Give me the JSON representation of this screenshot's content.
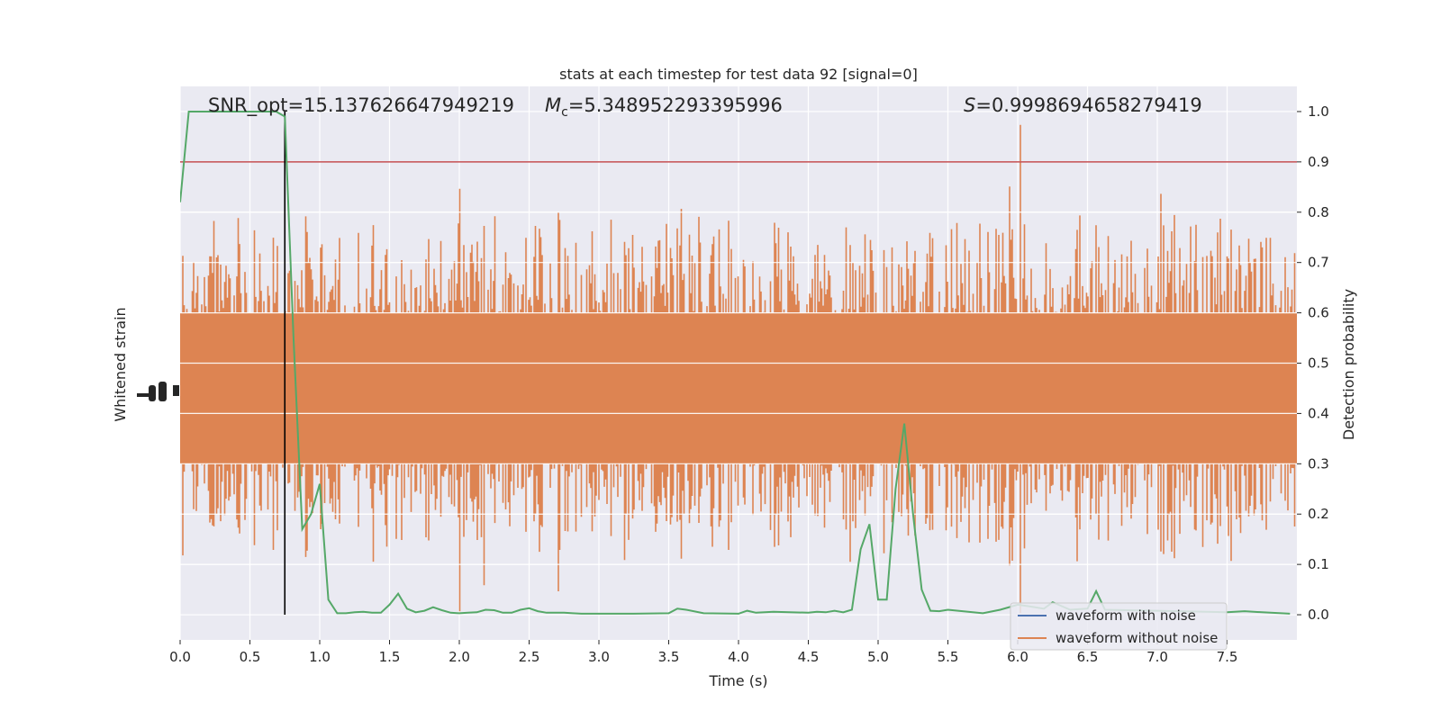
{
  "chart_data": {
    "type": "line",
    "title": "stats at each timestep for test data 92 [signal=0]",
    "xlabel": "Time (s)",
    "ylabel_left": "Whitened strain",
    "ylabel_right": "Detection probability",
    "xlim": [
      0,
      8.0
    ],
    "ylim_right": [
      -0.05,
      1.05
    ],
    "x_ticks": [
      "0.0",
      "0.5",
      "1.0",
      "1.5",
      "2.0",
      "2.5",
      "3.0",
      "3.5",
      "4.0",
      "4.5",
      "5.0",
      "5.5",
      "6.0",
      "6.5",
      "7.0",
      "7.5"
    ],
    "y_ticks_right": [
      "0.0",
      "0.1",
      "0.2",
      "0.3",
      "0.4",
      "0.5",
      "0.6",
      "0.7",
      "0.8",
      "0.9",
      "1.0"
    ],
    "grid": true,
    "threshold": 0.9,
    "marker_time": 0.75,
    "annotations": {
      "snr": "SNR_opt=15.137626647949219",
      "mc_symbol": "M",
      "mc_sub": "c",
      "mc_value": "=5.348952293395996",
      "s_symbol": "S",
      "s_value": "=0.9998694658279419"
    },
    "legend": {
      "position": "lower-right",
      "entries": [
        "waveform with noise",
        "waveform without noise"
      ]
    },
    "colors": {
      "noise": "#4c72b0",
      "strain": "#dd8452",
      "probability": "#55a868",
      "threshold": "#c44e52",
      "marker": "#000000",
      "background": "#eaeaf2"
    },
    "series": [
      {
        "name": "Detection probability",
        "x": [
          0.0,
          0.062,
          0.125,
          0.188,
          0.25,
          0.312,
          0.375,
          0.438,
          0.5,
          0.562,
          0.625,
          0.688,
          0.75,
          0.812,
          0.875,
          0.938,
          1.0,
          1.062,
          1.125,
          1.188,
          1.25,
          1.312,
          1.375,
          1.438,
          1.5,
          1.562,
          1.625,
          1.688,
          1.75,
          1.812,
          1.875,
          1.938,
          2.0,
          2.062,
          2.125,
          2.188,
          2.25,
          2.312,
          2.375,
          2.438,
          2.5,
          2.562,
          2.625,
          2.688,
          2.75,
          2.812,
          2.875,
          2.938,
          3.0,
          3.25,
          3.5,
          3.562,
          3.625,
          3.75,
          4.0,
          4.062,
          4.125,
          4.25,
          4.5,
          4.562,
          4.625,
          4.688,
          4.75,
          4.812,
          4.875,
          4.938,
          5.0,
          5.062,
          5.125,
          5.188,
          5.25,
          5.312,
          5.375,
          5.438,
          5.5,
          5.75,
          5.875,
          6.0,
          6.125,
          6.188,
          6.25,
          6.375,
          6.5,
          6.562,
          6.625,
          7.0,
          7.5,
          7.625,
          7.75,
          7.95
        ],
        "y": [
          0.82,
          1.0,
          1.0,
          1.0,
          1.0,
          1.0,
          1.0,
          1.0,
          1.0,
          1.0,
          1.0,
          1.0,
          0.99,
          0.55,
          0.17,
          0.2,
          0.26,
          0.03,
          0.003,
          0.003,
          0.005,
          0.006,
          0.004,
          0.004,
          0.02,
          0.042,
          0.012,
          0.005,
          0.008,
          0.015,
          0.009,
          0.004,
          0.003,
          0.004,
          0.005,
          0.01,
          0.009,
          0.004,
          0.004,
          0.01,
          0.013,
          0.007,
          0.004,
          0.004,
          0.004,
          0.003,
          0.002,
          0.002,
          0.002,
          0.002,
          0.003,
          0.012,
          0.01,
          0.003,
          0.002,
          0.008,
          0.004,
          0.006,
          0.004,
          0.006,
          0.005,
          0.008,
          0.005,
          0.01,
          0.13,
          0.18,
          0.03,
          0.03,
          0.25,
          0.38,
          0.2,
          0.05,
          0.008,
          0.007,
          0.01,
          0.003,
          0.01,
          0.02,
          0.015,
          0.012,
          0.025,
          0.01,
          0.012,
          0.047,
          0.01,
          0.008,
          0.005,
          0.007,
          0.005,
          0.002
        ]
      }
    ]
  }
}
